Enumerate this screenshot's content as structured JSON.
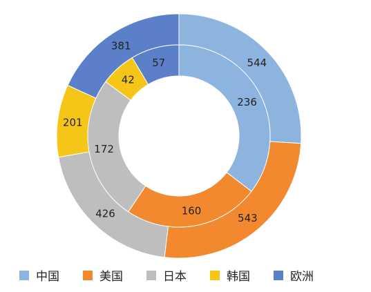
{
  "chart_data": {
    "type": "pie",
    "categories": [
      "中国",
      "美国",
      "日本",
      "韩国",
      "欧洲"
    ],
    "colors": [
      "#8CB4DF",
      "#F2892F",
      "#BEBEBE",
      "#F5C518",
      "#5B7FC8"
    ],
    "series": [
      {
        "ring": "outer",
        "values": [
          544,
          543,
          426,
          201,
          381
        ]
      },
      {
        "ring": "inner",
        "values": [
          236,
          160,
          172,
          42,
          57
        ]
      }
    ],
    "legend_position": "bottom"
  }
}
